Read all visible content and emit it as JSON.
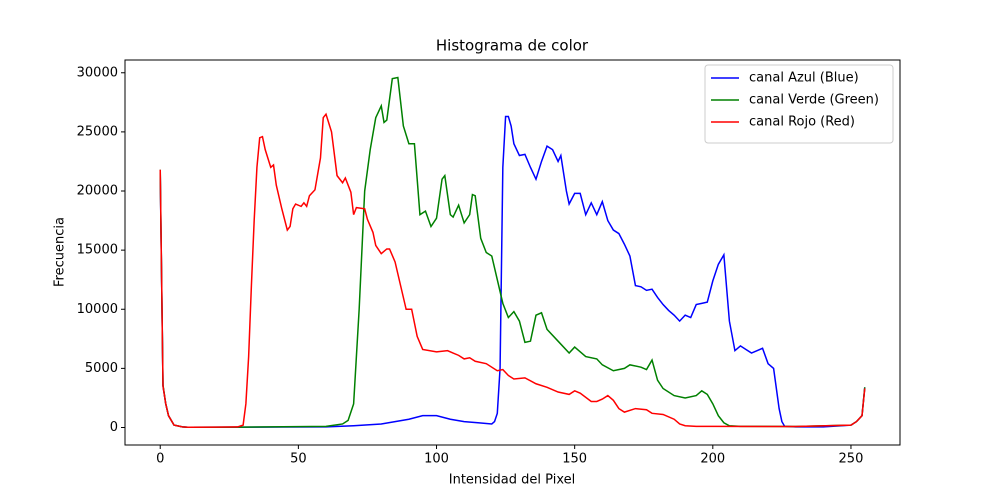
{
  "chart_data": {
    "type": "line",
    "title": "Histograma de color",
    "x_label": "Intensidad del Pixel",
    "y_label": "Frecuencia",
    "xlim": [
      -12.75,
      267.75
    ],
    "ylim": [
      -1480,
      31080
    ],
    "xticks": [
      0,
      50,
      100,
      150,
      200,
      250
    ],
    "yticks": [
      0,
      5000,
      10000,
      15000,
      20000,
      25000,
      30000
    ],
    "grid": false,
    "legend": "upper right",
    "series": [
      {
        "name": "canal Azul (Blue)",
        "color": "#0000ff",
        "x": [
          0,
          1,
          2,
          3,
          5,
          8,
          10,
          30,
          60,
          70,
          80,
          90,
          95,
          100,
          105,
          110,
          115,
          120,
          121,
          122,
          123,
          124,
          125,
          126,
          127,
          128,
          130,
          132,
          134,
          136,
          138,
          140,
          142,
          144,
          145,
          147,
          148,
          150,
          152,
          154,
          156,
          158,
          160,
          162,
          164,
          166,
          168,
          170,
          172,
          174,
          176,
          178,
          180,
          182,
          184,
          186,
          188,
          190,
          192,
          194,
          196,
          198,
          200,
          202,
          204,
          206,
          208,
          210,
          212,
          214,
          216,
          218,
          220,
          222,
          224,
          225,
          226,
          230,
          240,
          250,
          252,
          254,
          255
        ],
        "values": [
          21500,
          3500,
          2000,
          1000,
          200,
          50,
          20,
          30,
          50,
          150,
          300,
          700,
          1000,
          1000,
          700,
          500,
          400,
          300,
          500,
          1200,
          5000,
          22000,
          26300,
          26300,
          25500,
          24000,
          23000,
          23100,
          22000,
          21000,
          22500,
          23800,
          23500,
          22500,
          23000,
          20000,
          18900,
          19800,
          19800,
          18000,
          19000,
          18000,
          19100,
          17500,
          16700,
          16400,
          15500,
          14500,
          12000,
          11900,
          11600,
          11700,
          11000,
          10400,
          9900,
          9500,
          9000,
          9500,
          9300,
          10400,
          10500,
          10600,
          12400,
          13800,
          14600,
          9000,
          6500,
          6900,
          6600,
          6300,
          6500,
          6700,
          5400,
          5000,
          1600,
          500,
          100,
          50,
          50,
          200,
          500,
          1000,
          3400
        ]
      },
      {
        "name": "canal Verde (Green)",
        "color": "#008000",
        "x": [
          0,
          1,
          2,
          3,
          5,
          8,
          10,
          30,
          60,
          66,
          68,
          70,
          72,
          74,
          76,
          78,
          80,
          81,
          82,
          84,
          86,
          88,
          90,
          92,
          93,
          94,
          96,
          98,
          100,
          102,
          103,
          105,
          106,
          108,
          110,
          112,
          113,
          114,
          116,
          118,
          120,
          122,
          124,
          126,
          128,
          130,
          132,
          134,
          136,
          138,
          140,
          144,
          148,
          150,
          154,
          158,
          160,
          164,
          168,
          170,
          174,
          176,
          178,
          180,
          182,
          186,
          190,
          194,
          196,
          198,
          200,
          202,
          204,
          206,
          210,
          230,
          250,
          252,
          254,
          255
        ],
        "values": [
          21800,
          3600,
          2000,
          1000,
          200,
          50,
          20,
          30,
          100,
          300,
          600,
          2000,
          10000,
          20000,
          23500,
          26200,
          27200,
          25800,
          26000,
          29500,
          29600,
          25500,
          24000,
          24000,
          21000,
          18000,
          18300,
          17000,
          17700,
          21000,
          21300,
          18000,
          17800,
          18800,
          17300,
          18000,
          19700,
          19600,
          16000,
          14800,
          14500,
          12500,
          10500,
          9300,
          9800,
          9000,
          7200,
          7300,
          9500,
          9700,
          8300,
          7300,
          6300,
          6800,
          6000,
          5800,
          5300,
          4800,
          5000,
          5300,
          5100,
          4900,
          5700,
          4000,
          3300,
          2700,
          2500,
          2700,
          3100,
          2800,
          2000,
          1000,
          400,
          150,
          100,
          80,
          200,
          500,
          1000,
          3400
        ]
      },
      {
        "name": "canal Rojo (Red)",
        "color": "#ff0000",
        "x": [
          0,
          1,
          2,
          3,
          5,
          8,
          10,
          20,
          28,
          30,
          31,
          32,
          33,
          34,
          35,
          36,
          37,
          38,
          40,
          41,
          42,
          44,
          46,
          47,
          48,
          49,
          51,
          52,
          53,
          54,
          56,
          58,
          59,
          60,
          62,
          64,
          66,
          67,
          69,
          70,
          71,
          74,
          75,
          77,
          78,
          80,
          82,
          83,
          85,
          87,
          89,
          91,
          93,
          95,
          100,
          104,
          106,
          108,
          110,
          112,
          114,
          118,
          122,
          124,
          126,
          128,
          132,
          136,
          140,
          144,
          148,
          150,
          152,
          156,
          158,
          160,
          162,
          164,
          166,
          168,
          172,
          176,
          178,
          182,
          186,
          188,
          190,
          194,
          200,
          230,
          250,
          252,
          254,
          255
        ],
        "values": [
          21800,
          3500,
          2000,
          1000,
          200,
          50,
          20,
          30,
          50,
          200,
          2000,
          6000,
          12000,
          17500,
          22000,
          24500,
          24600,
          23500,
          22000,
          22200,
          20500,
          18500,
          16700,
          17000,
          18500,
          18900,
          18700,
          19000,
          18700,
          19600,
          20100,
          22800,
          26200,
          26500,
          25000,
          21300,
          20700,
          21100,
          19900,
          18000,
          18600,
          18500,
          17600,
          16500,
          15400,
          14700,
          15100,
          15100,
          14000,
          12000,
          10000,
          10000,
          7700,
          6600,
          6400,
          6500,
          6300,
          6100,
          5800,
          5900,
          5600,
          5400,
          4800,
          4900,
          4400,
          4100,
          4200,
          3700,
          3400,
          3000,
          2800,
          3100,
          2900,
          2200,
          2200,
          2400,
          2700,
          2300,
          1600,
          1300,
          1600,
          1500,
          1200,
          1100,
          700,
          300,
          150,
          100,
          100,
          80,
          200,
          500,
          1000,
          3300
        ]
      }
    ]
  }
}
